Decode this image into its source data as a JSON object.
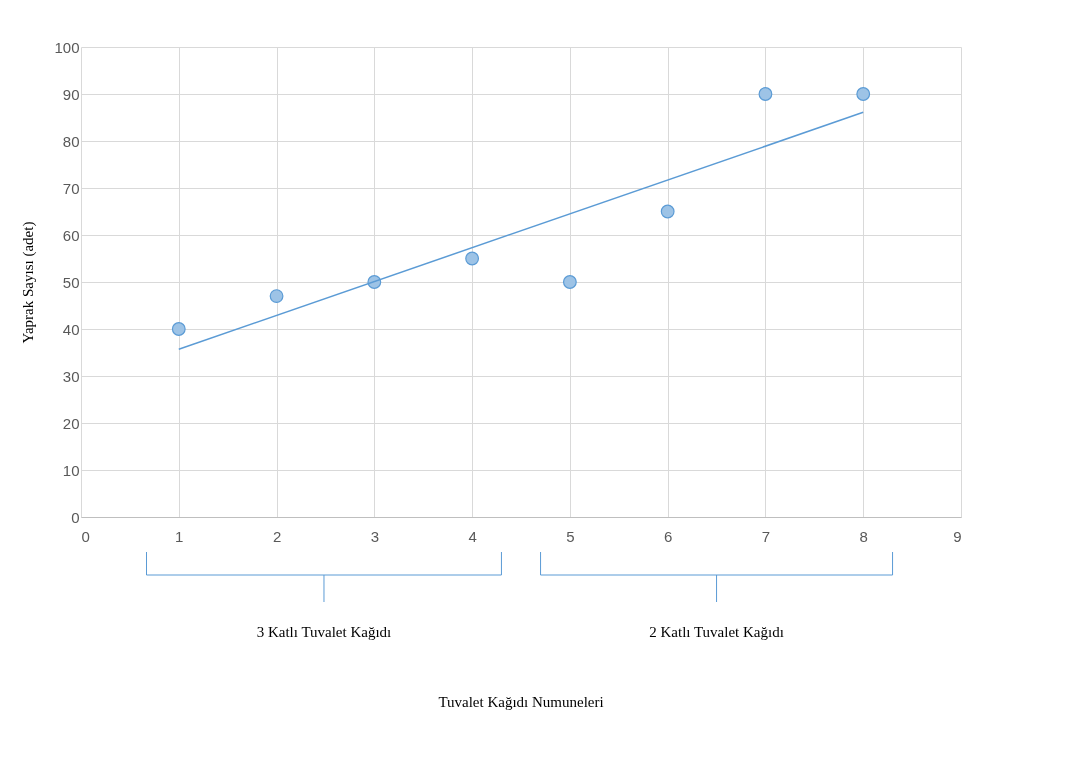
{
  "chart_data": {
    "type": "scatter",
    "ylabel": "Yaprak Sayısı (adet)",
    "x": [
      1,
      2,
      3,
      4,
      5,
      6,
      7,
      8
    ],
    "series": [
      {
        "color": "#5b9bd5",
        "marker": "circle",
        "values": [
          40,
          47,
          50,
          55,
          50,
          65,
          90,
          90
        ]
      },
      {
        "type": "line",
        "color": "#5b9bd5",
        "marker": "none",
        "line_style": "solid",
        "x": [
          1,
          8
        ],
        "values": [
          35.7,
          86.1
        ]
      }
    ],
    "xlim": [
      0,
      9
    ],
    "xticks": [
      0,
      1,
      2,
      3,
      4,
      5,
      6,
      7,
      8,
      9
    ],
    "ylim": [
      0,
      100
    ],
    "yticks": [
      0,
      10,
      20,
      30,
      40,
      50,
      60,
      70,
      80,
      90,
      100
    ],
    "grid": true,
    "legend": false,
    "annotations": [
      "3 Katlı Tuvalet Kağıdı",
      "2 Katlı Tuvalet Kağıdı",
      "Tuvalet Kağıdı Numuneleri"
    ]
  }
}
